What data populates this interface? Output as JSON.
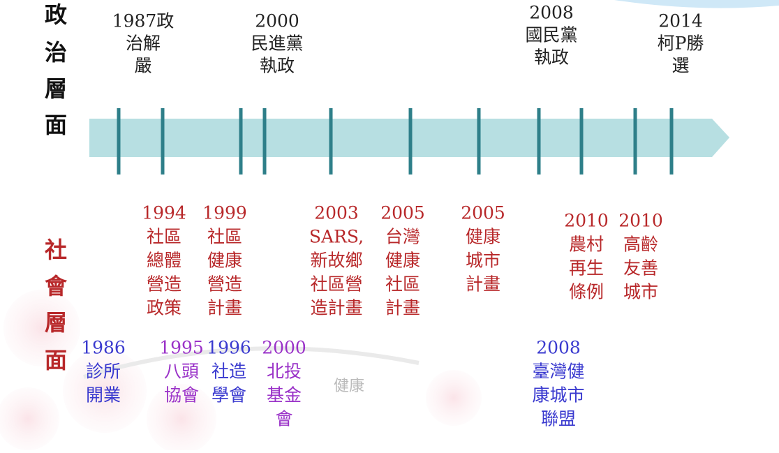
{
  "headers": {
    "political": [
      "政",
      "治",
      "層",
      "面"
    ],
    "social": [
      "社",
      "會",
      "層",
      "面"
    ]
  },
  "political_events": {
    "color": "#222222",
    "items": [
      {
        "lines": [
          "1987政",
          "治解",
          "嚴"
        ]
      },
      {
        "lines": [
          "2000",
          "民進黨",
          "執政"
        ]
      },
      {
        "lines": [
          "2008",
          "國民黨",
          "執政"
        ]
      },
      {
        "lines": [
          "2014",
          "柯P勝",
          "選"
        ]
      }
    ]
  },
  "social_events": {
    "color": "#b8282a",
    "items": [
      {
        "lines": [
          "1994",
          "社區",
          "總體",
          "營造",
          "政策"
        ]
      },
      {
        "lines": [
          "1999",
          "社區",
          "健康",
          "營造",
          "計畫"
        ]
      },
      {
        "lines": [
          "2003",
          "SARS,",
          "新故鄉",
          "社區營",
          "造計畫"
        ]
      },
      {
        "lines": [
          "2005",
          "台灣",
          "健康",
          "社區",
          "計畫"
        ]
      },
      {
        "lines": [
          "2005",
          "健康",
          "城市",
          "計畫"
        ]
      },
      {
        "lines": [
          "2010",
          "農村",
          "再生",
          "條例"
        ]
      },
      {
        "lines": [
          "2010",
          "高齡",
          "友善",
          "城市"
        ]
      }
    ]
  },
  "civil_events": {
    "items": [
      {
        "lines": [
          "1986",
          "診所",
          "開業"
        ],
        "color": "#3a3acf"
      },
      {
        "lines": [
          "1995",
          "八頭",
          "協會"
        ],
        "color": "#9a32c8"
      },
      {
        "lines": [
          "1996",
          "社造",
          "學會"
        ],
        "color": "#3a3acf"
      },
      {
        "lines": [
          "2000",
          "北投",
          "基金",
          "會"
        ],
        "color": "#9a32c8"
      },
      {
        "lines": [
          "2008",
          "臺灣健",
          "康城市",
          "聯盟"
        ],
        "color": "#3a3acf"
      }
    ]
  },
  "watermark": "健康"
}
